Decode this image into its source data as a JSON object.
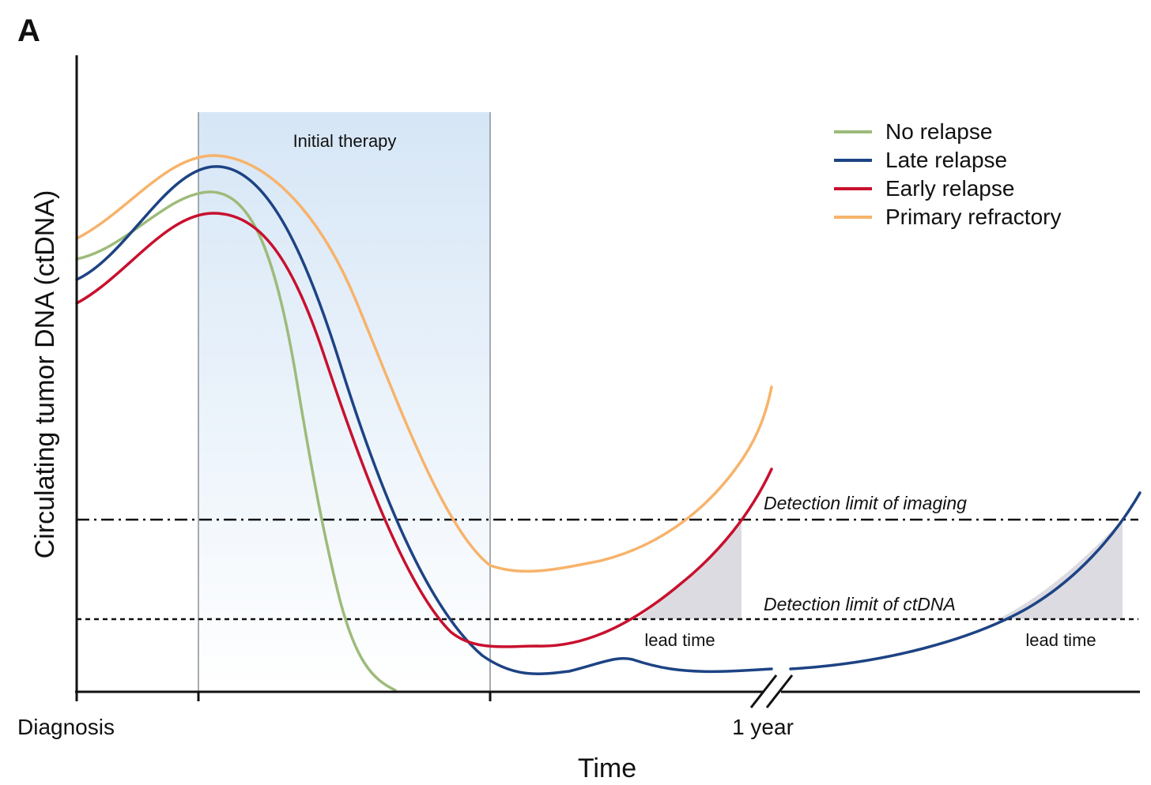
{
  "panel_label": "A",
  "chart_data": {
    "type": "line",
    "title": "",
    "xlabel": "Time",
    "ylabel": "Circulating tumor DNA (ctDNA)",
    "x_ticks": [
      "Diagnosis",
      "",
      "",
      "1 year"
    ],
    "axis_break": true,
    "legend": {
      "placement": "top-right"
    },
    "grid": false,
    "series": [
      {
        "name": "No relapse",
        "color": "#9dbb7a"
      },
      {
        "name": "Late relapse",
        "color": "#1d4384"
      },
      {
        "name": "Early relapse",
        "color": "#c8102e"
      },
      {
        "name": "Primary refractory",
        "color": "#f7b36b"
      }
    ],
    "annotations": {
      "therapy_window": "Initial therapy",
      "imaging_limit": "Detection limit of imaging",
      "ctdna_limit": "Detection limit of ctDNA",
      "lead_time_1": "lead time",
      "lead_time_2": "lead time"
    }
  }
}
